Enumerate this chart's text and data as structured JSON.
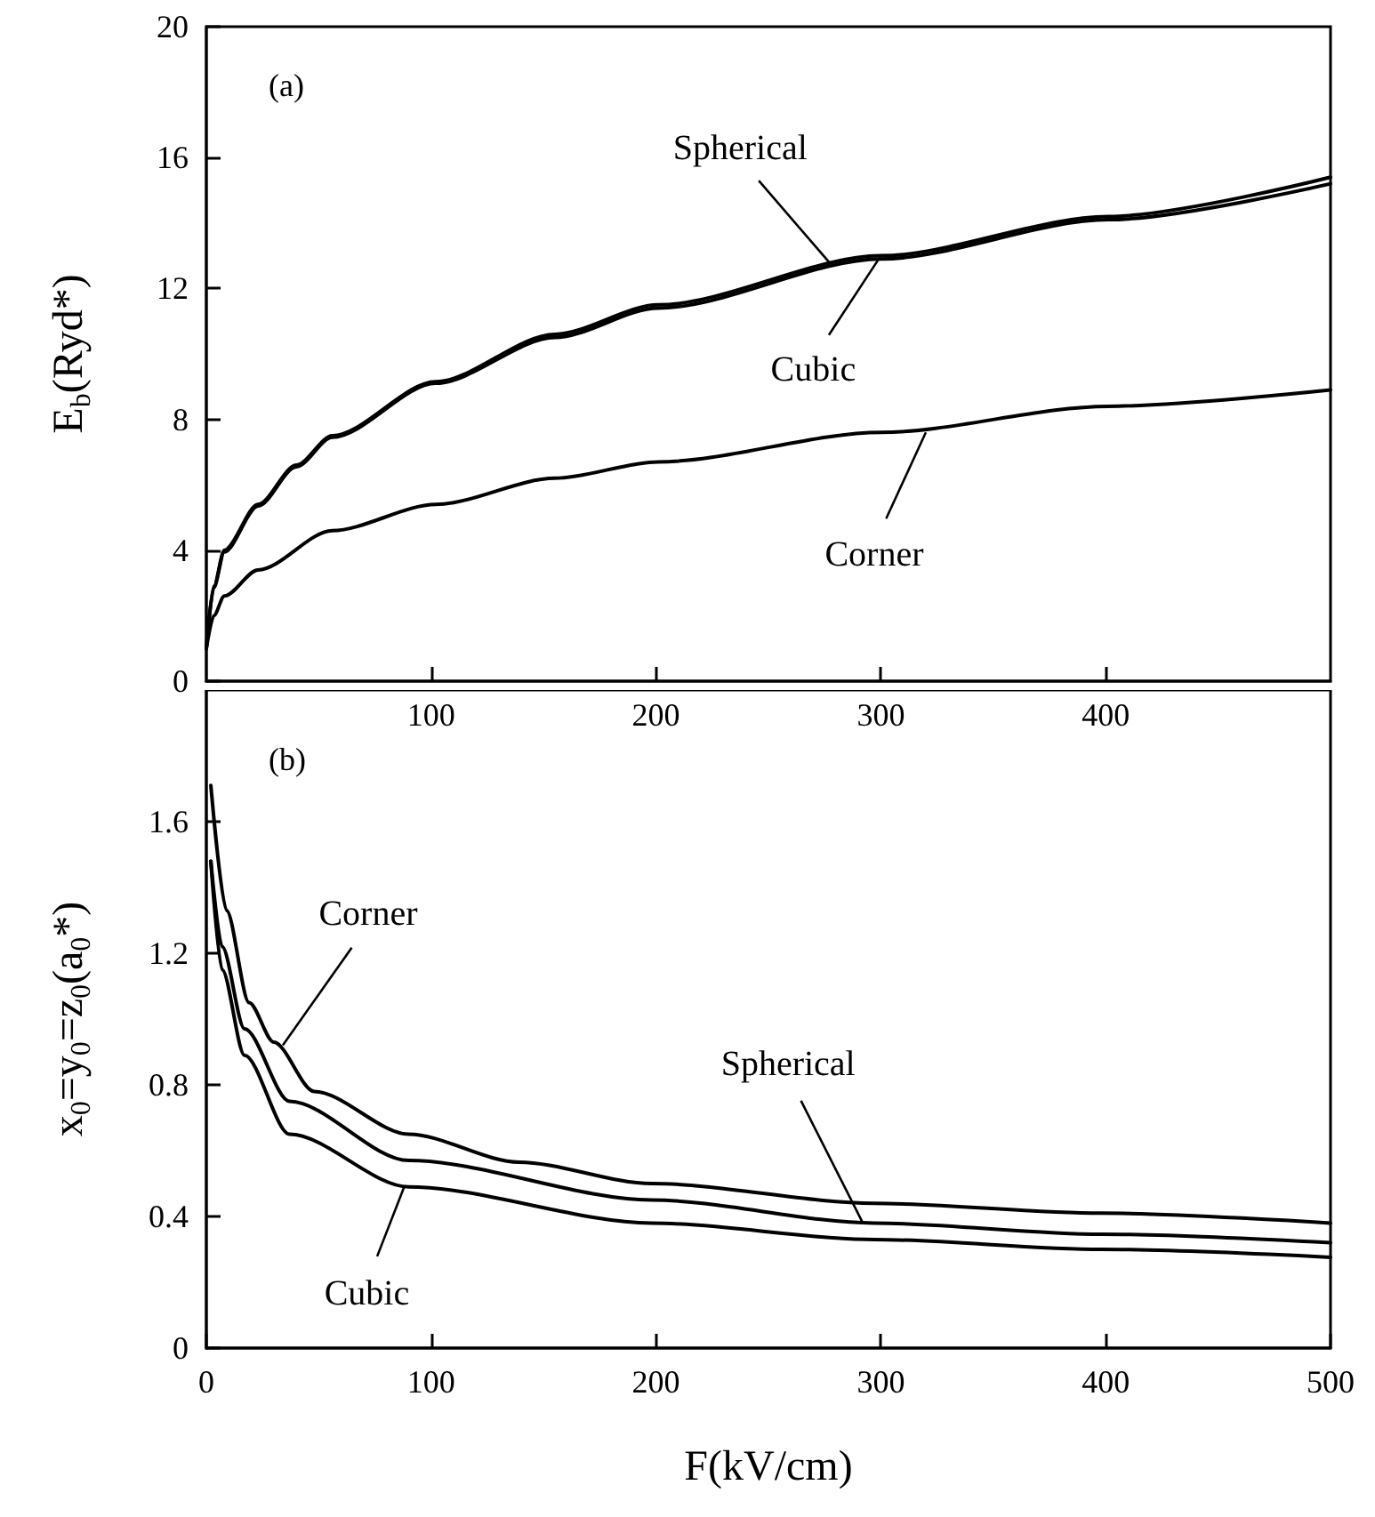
{
  "chart_data": [
    {
      "type": "line",
      "ylabel": "E$_{b}$(Ryd*)",
      "xlim": [
        0,
        500
      ],
      "xticks": [
        100,
        200,
        300,
        400
      ],
      "ylim": [
        0,
        20
      ],
      "yticks": [
        0,
        4,
        8,
        12,
        16,
        20
      ],
      "grid": false,
      "marker": "none",
      "line_style": "solid",
      "series": [
        {
          "color": "#000000",
          "x": [
            0,
            3.3,
            8,
            23,
            40,
            56,
            102,
            155,
            201,
            300,
            401,
            500
          ],
          "values": [
            1.0,
            2.9,
            4.0,
            5.4,
            6.6,
            7.5,
            9.15,
            10.6,
            11.5,
            13.0,
            14.2,
            15.4
          ]
        },
        {
          "color": "#000000",
          "x": [
            0,
            3.3,
            8,
            23,
            40,
            56,
            102,
            155,
            201,
            300,
            401,
            500
          ],
          "values": [
            1.0,
            2.85,
            3.95,
            5.35,
            6.55,
            7.45,
            9.1,
            10.5,
            11.4,
            12.9,
            14.1,
            15.2
          ]
        },
        {
          "color": "#000000",
          "x": [
            0,
            3.3,
            8,
            23,
            56,
            102,
            155,
            201,
            300,
            401,
            500
          ],
          "values": [
            1.0,
            2.0,
            2.6,
            3.4,
            4.6,
            5.4,
            6.2,
            6.7,
            7.6,
            8.4,
            8.9
          ]
        }
      ],
      "annotations": [
        "(a)",
        {
          "text": "Spherical",
          "x": 277,
          "y": 12.8
        },
        {
          "text": "Cubic",
          "x": 300,
          "y": 13.0
        },
        {
          "text": "Corner",
          "x": 320,
          "y": 7.6
        }
      ]
    },
    {
      "type": "line",
      "xlabel": "F(kV/cm)",
      "ylabel": "x$_{0}$=y$_{0}$=z$_{0}$(a$_{0}$*)",
      "xlim": [
        0,
        500
      ],
      "xticks": [
        0,
        100,
        200,
        300,
        400,
        500
      ],
      "ylim": [
        0,
        2.0
      ],
      "yticks": [
        0,
        0.4,
        0.8,
        1.2,
        1.6
      ],
      "grid": false,
      "marker": "none",
      "line_style": "solid",
      "series": [
        {
          "color": "#000000",
          "x": [
            2,
            9,
            19,
            30,
            48,
            90,
            139,
            198,
            297,
            398,
            500
          ],
          "values": [
            1.71,
            1.33,
            1.05,
            0.93,
            0.78,
            0.65,
            0.565,
            0.5,
            0.44,
            0.41,
            0.38
          ]
        },
        {
          "color": "#000000",
          "x": [
            2,
            7,
            17,
            37,
            90,
            198,
            297,
            398,
            500
          ],
          "values": [
            1.48,
            1.22,
            0.97,
            0.75,
            0.57,
            0.45,
            0.38,
            0.346,
            0.32
          ]
        },
        {
          "color": "#000000",
          "x": [
            2,
            7,
            17,
            37,
            90,
            198,
            297,
            398,
            500
          ],
          "values": [
            1.48,
            1.15,
            0.89,
            0.65,
            0.49,
            0.38,
            0.33,
            0.3,
            0.276
          ]
        }
      ],
      "annotations": [
        "(b)",
        {
          "text": "Corner",
          "x": 34,
          "y": 0.92
        },
        {
          "text": "Spherical",
          "x": 292,
          "y": 0.38
        },
        {
          "text": "Cubic",
          "x": 88,
          "y": 0.49
        }
      ]
    }
  ]
}
